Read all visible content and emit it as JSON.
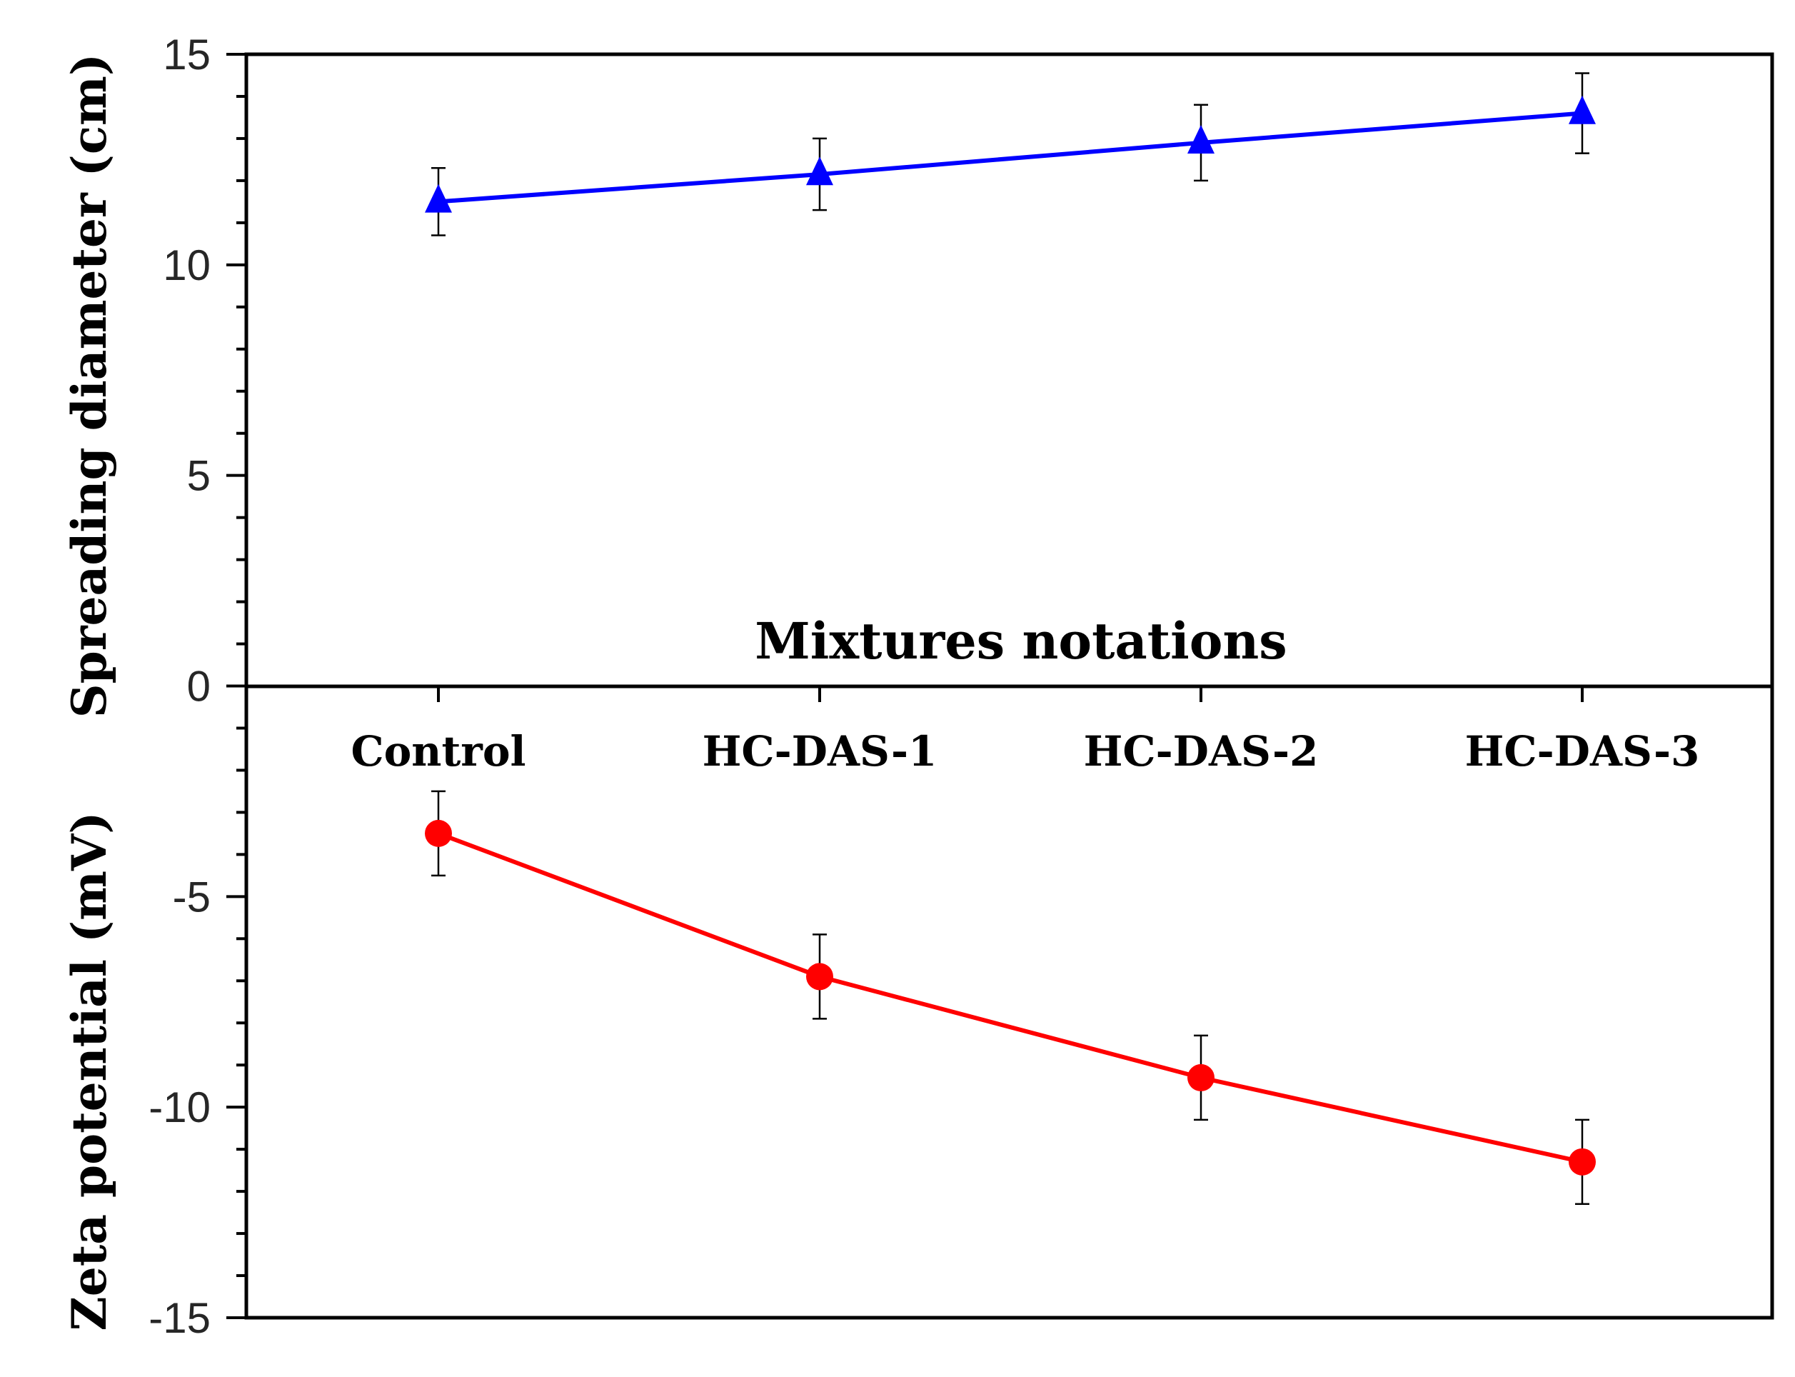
{
  "chart_data": {
    "type": "line",
    "xlabel": "Mixtures notations",
    "categories": [
      "Control",
      "HC-DAS-1",
      "HC-DAS-2",
      "HC-DAS-3"
    ],
    "y_ticks": [
      "15",
      "10",
      "5",
      "0",
      "-5",
      "-10",
      "-15"
    ],
    "ylim": [
      -15,
      15
    ],
    "series": [
      {
        "name": "Spreading diameter",
        "ylabel": "Spreading diameter (cm)",
        "marker": "triangle",
        "color": "#0000ff",
        "values": [
          11.5,
          12.15,
          12.9,
          13.6
        ],
        "error": [
          0.8,
          0.85,
          0.9,
          0.95
        ]
      },
      {
        "name": "Zeta potential",
        "ylabel": "Zeta potential (mV)",
        "marker": "circle",
        "color": "#ff0000",
        "values": [
          -3.5,
          -6.9,
          -9.3,
          -11.3
        ],
        "error": [
          1.0,
          1.0,
          1.0,
          1.0
        ]
      }
    ]
  }
}
